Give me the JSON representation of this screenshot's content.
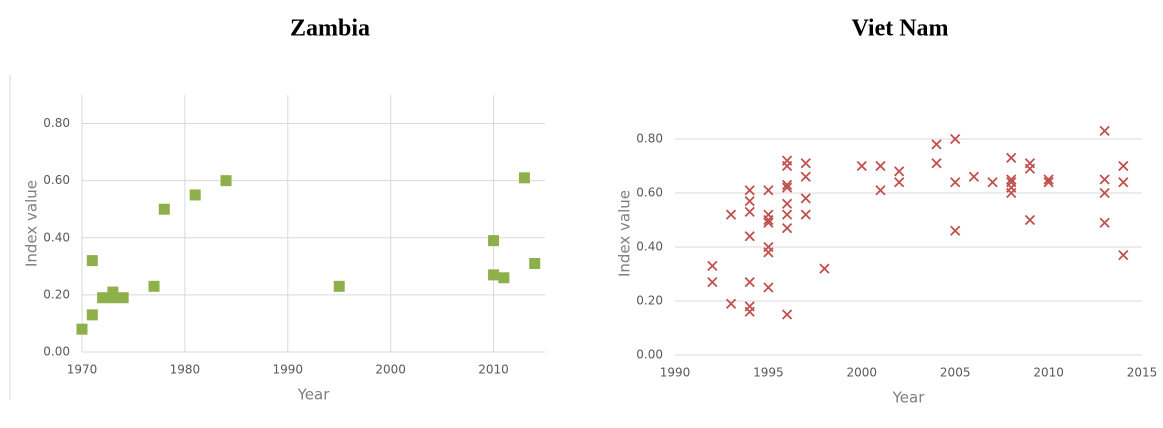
{
  "chart_data": [
    {
      "type": "scatter",
      "title": "Zambia",
      "x_label": "Year",
      "y_label": "Index value",
      "marker": "square",
      "grid": "both",
      "series": [
        {
          "name": "Zambia",
          "color": "#8db04a",
          "x": [
            1970,
            1971,
            1971,
            1972,
            1973,
            1973,
            1974,
            1977,
            1978,
            1981,
            1984,
            1995,
            2010,
            2010,
            2011,
            2013,
            2014
          ],
          "values": [
            0.08,
            0.13,
            0.32,
            0.19,
            0.21,
            0.19,
            0.19,
            0.23,
            0.5,
            0.55,
            0.6,
            0.23,
            0.39,
            0.27,
            0.26,
            0.61,
            0.31
          ]
        }
      ],
      "xlim": [
        1970,
        2015
      ],
      "xticks": [
        1970,
        1980,
        1990,
        2000,
        2010
      ],
      "ylim": [
        0,
        0.9
      ],
      "yticks": [
        {
          "value": 0,
          "label": "0.00"
        },
        {
          "value": 0.2,
          "label": "0.20"
        },
        {
          "value": 0.4,
          "label": "0.40"
        },
        {
          "value": 0.6,
          "label": "0.60"
        },
        {
          "value": 0.8,
          "label": "0.80"
        }
      ]
    },
    {
      "type": "scatter",
      "title": "Viet Nam",
      "x_label": "Year",
      "y_label": "Index value",
      "marker": "x",
      "grid": "y",
      "series": [
        {
          "name": "Viet Nam",
          "color": "#c0504d",
          "x": [
            1992,
            1992,
            1993,
            1993,
            1994,
            1994,
            1994,
            1994,
            1994,
            1994,
            1994,
            1995,
            1995,
            1995,
            1995,
            1995,
            1995,
            1995,
            1996,
            1996,
            1996,
            1996,
            1996,
            1996,
            1996,
            1996,
            1997,
            1997,
            1997,
            1997,
            1998,
            2000,
            2001,
            2001,
            2002,
            2002,
            2004,
            2004,
            2005,
            2005,
            2005,
            2006,
            2007,
            2008,
            2008,
            2008,
            2008,
            2008,
            2009,
            2009,
            2009,
            2010,
            2010,
            2013,
            2013,
            2013,
            2013,
            2014,
            2014,
            2014
          ],
          "values": [
            0.33,
            0.27,
            0.52,
            0.19,
            0.61,
            0.57,
            0.53,
            0.44,
            0.27,
            0.18,
            0.16,
            0.61,
            0.52,
            0.5,
            0.49,
            0.4,
            0.38,
            0.25,
            0.72,
            0.7,
            0.63,
            0.62,
            0.56,
            0.52,
            0.47,
            0.15,
            0.71,
            0.66,
            0.58,
            0.52,
            0.32,
            0.7,
            0.7,
            0.61,
            0.68,
            0.64,
            0.78,
            0.71,
            0.8,
            0.64,
            0.46,
            0.66,
            0.64,
            0.73,
            0.65,
            0.64,
            0.62,
            0.6,
            0.71,
            0.69,
            0.5,
            0.65,
            0.64,
            0.83,
            0.65,
            0.6,
            0.49,
            0.7,
            0.64,
            0.37
          ]
        }
      ],
      "xlim": [
        1990,
        2015
      ],
      "xticks": [
        1990,
        1995,
        2000,
        2005,
        2010,
        2015
      ],
      "ylim": [
        0,
        0.9
      ],
      "yticks": [
        {
          "value": 0,
          "label": "0.00"
        },
        {
          "value": 0.2,
          "label": "0.20"
        },
        {
          "value": 0.4,
          "label": "0.40"
        },
        {
          "value": 0.6,
          "label": "0.60"
        },
        {
          "value": 0.8,
          "label": "0.80"
        }
      ]
    }
  ]
}
